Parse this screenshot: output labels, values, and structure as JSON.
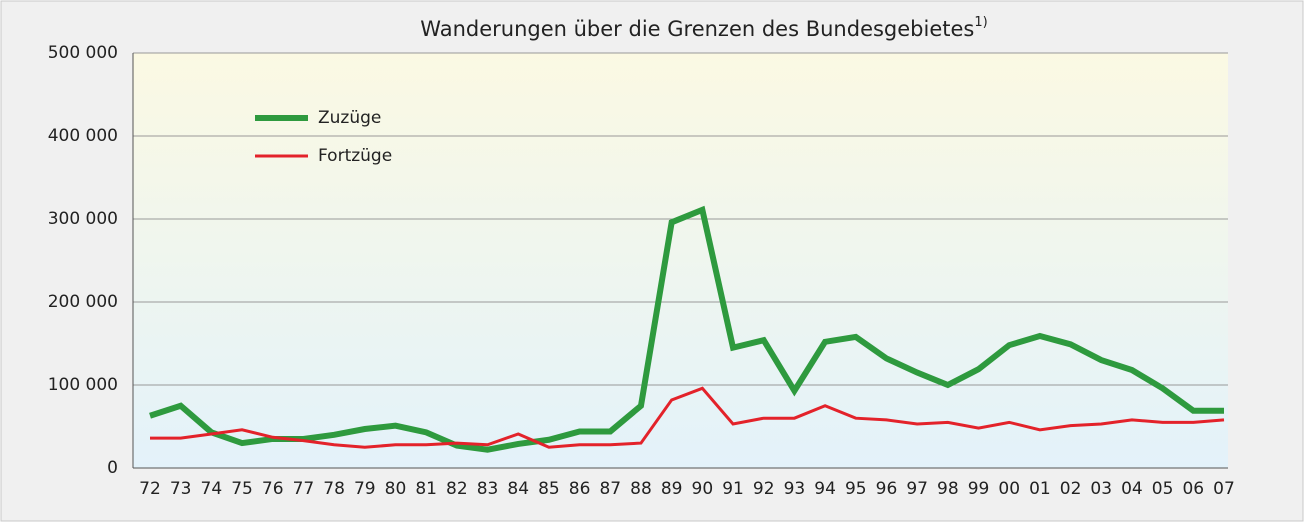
{
  "chart_data": {
    "type": "line",
    "title": "Wanderungen über die Grenzen des Bundesgebietes",
    "title_note": "1)",
    "categories": [
      "72",
      "73",
      "74",
      "75",
      "76",
      "77",
      "78",
      "79",
      "80",
      "81",
      "82",
      "83",
      "84",
      "85",
      "86",
      "87",
      "88",
      "89",
      "90",
      "91",
      "92",
      "93",
      "94",
      "95",
      "96",
      "97",
      "98",
      "99",
      "00",
      "01",
      "02",
      "03",
      "04",
      "05",
      "06",
      "07"
    ],
    "series": [
      {
        "name": "Zuzüge",
        "color": "#2e9a3e",
        "width": 6,
        "values": [
          63000,
          75000,
          43000,
          30000,
          35000,
          35000,
          40000,
          47000,
          51000,
          43000,
          27000,
          22000,
          29000,
          34000,
          44000,
          44000,
          75000,
          296000,
          311000,
          145000,
          154000,
          93000,
          152000,
          158000,
          132000,
          115000,
          100000,
          119000,
          148000,
          159000,
          149000,
          130000,
          118000,
          96000,
          69000,
          69000
        ]
      },
      {
        "name": "Fortzüge",
        "color": "#e3222a",
        "width": 3,
        "values": [
          36000,
          36000,
          41000,
          46000,
          37000,
          33000,
          28000,
          25000,
          28000,
          28000,
          30000,
          28000,
          41000,
          25000,
          28000,
          28000,
          30000,
          82000,
          96000,
          53000,
          60000,
          60000,
          75000,
          60000,
          58000,
          53000,
          55000,
          48000,
          55000,
          46000,
          51000,
          53000,
          58000,
          55000,
          55000,
          58000
        ]
      }
    ],
    "ylim": [
      0,
      500000
    ],
    "yticks": [
      0,
      {
        "value": 100000,
        "label": "100 000"
      },
      {
        "value": 200000,
        "label": "200 000"
      },
      {
        "value": 300000,
        "label": "300 000"
      },
      {
        "value": 400000,
        "label": "400 000"
      },
      {
        "value": 500000,
        "label": "500 000"
      }
    ],
    "grid": true
  }
}
